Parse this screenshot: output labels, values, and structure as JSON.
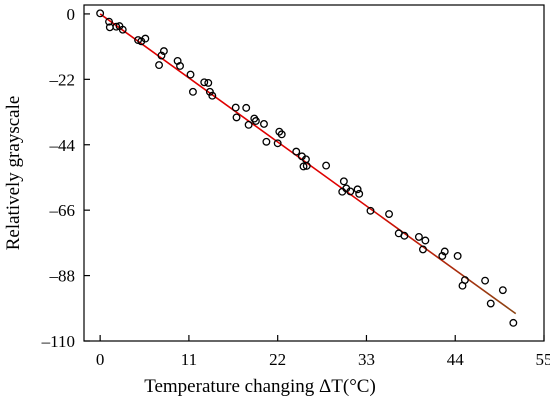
{
  "chart_data": {
    "type": "scatter",
    "title": "",
    "xlabel": "Temperature changing ΔT(°C)",
    "ylabel": "Relatively grayscale",
    "xlim": [
      -2,
      55
    ],
    "ylim": [
      -110,
      3
    ],
    "xticks": [
      0,
      11,
      22,
      33,
      44,
      55
    ],
    "yticks": [
      0,
      -22,
      -44,
      -66,
      -88,
      -110
    ],
    "xtick_labels": [
      "0",
      "11",
      "22",
      "33",
      "44",
      "55"
    ],
    "ytick_labels": [
      "0",
      "–22",
      "–44",
      "–66",
      "–88",
      "–110"
    ],
    "grid": false,
    "legend": "none",
    "colors": {
      "points": "#000000",
      "fit_line_start": "#e00000",
      "fit_line_end": "#8b4513"
    },
    "points": [
      {
        "x": 0.0,
        "y": 0.2
      },
      {
        "x": 1.1,
        "y": -2.6
      },
      {
        "x": 1.2,
        "y": -4.5
      },
      {
        "x": 2.0,
        "y": -4.3
      },
      {
        "x": 2.4,
        "y": -4.1
      },
      {
        "x": 2.8,
        "y": -5.3
      },
      {
        "x": 4.7,
        "y": -8.8
      },
      {
        "x": 5.1,
        "y": -9.2
      },
      {
        "x": 5.6,
        "y": -8.3
      },
      {
        "x": 7.6,
        "y": -14.0
      },
      {
        "x": 7.9,
        "y": -12.5
      },
      {
        "x": 7.3,
        "y": -17.2
      },
      {
        "x": 9.6,
        "y": -15.8
      },
      {
        "x": 9.9,
        "y": -17.5
      },
      {
        "x": 11.2,
        "y": -20.4
      },
      {
        "x": 11.5,
        "y": -26.2
      },
      {
        "x": 12.9,
        "y": -23.0
      },
      {
        "x": 13.4,
        "y": -23.2
      },
      {
        "x": 13.6,
        "y": -26.2
      },
      {
        "x": 13.9,
        "y": -27.5
      },
      {
        "x": 16.8,
        "y": -31.5
      },
      {
        "x": 16.9,
        "y": -34.8
      },
      {
        "x": 18.1,
        "y": -31.6
      },
      {
        "x": 18.4,
        "y": -37.3
      },
      {
        "x": 19.1,
        "y": -35.2
      },
      {
        "x": 19.3,
        "y": -36.0
      },
      {
        "x": 20.3,
        "y": -37.0
      },
      {
        "x": 20.6,
        "y": -43.0
      },
      {
        "x": 22.0,
        "y": -43.5
      },
      {
        "x": 22.2,
        "y": -39.6
      },
      {
        "x": 22.5,
        "y": -40.5
      },
      {
        "x": 24.3,
        "y": -46.3
      },
      {
        "x": 25.0,
        "y": -47.9
      },
      {
        "x": 25.5,
        "y": -48.9
      },
      {
        "x": 25.2,
        "y": -51.3
      },
      {
        "x": 25.6,
        "y": -51.1
      },
      {
        "x": 28.0,
        "y": -51.0
      },
      {
        "x": 30.2,
        "y": -56.3
      },
      {
        "x": 30.5,
        "y": -58.7
      },
      {
        "x": 30.0,
        "y": -59.8
      },
      {
        "x": 31.0,
        "y": -59.7
      },
      {
        "x": 31.9,
        "y": -59.0
      },
      {
        "x": 32.1,
        "y": -60.5
      },
      {
        "x": 33.5,
        "y": -66.2
      },
      {
        "x": 35.8,
        "y": -67.3
      },
      {
        "x": 37.0,
        "y": -73.8
      },
      {
        "x": 37.7,
        "y": -74.6
      },
      {
        "x": 39.5,
        "y": -75.0
      },
      {
        "x": 40.0,
        "y": -79.2
      },
      {
        "x": 40.3,
        "y": -76.2
      },
      {
        "x": 42.7,
        "y": -79.9
      },
      {
        "x": 42.4,
        "y": -81.4
      },
      {
        "x": 44.3,
        "y": -81.4
      },
      {
        "x": 44.9,
        "y": -91.4
      },
      {
        "x": 45.2,
        "y": -89.5
      },
      {
        "x": 47.7,
        "y": -89.7
      },
      {
        "x": 48.4,
        "y": -97.4
      },
      {
        "x": 49.9,
        "y": -92.9
      },
      {
        "x": 51.2,
        "y": -103.9
      }
    ],
    "fit_line": {
      "x": [
        0.0,
        51.5
      ],
      "y": [
        0.0,
        -100.8
      ]
    }
  }
}
